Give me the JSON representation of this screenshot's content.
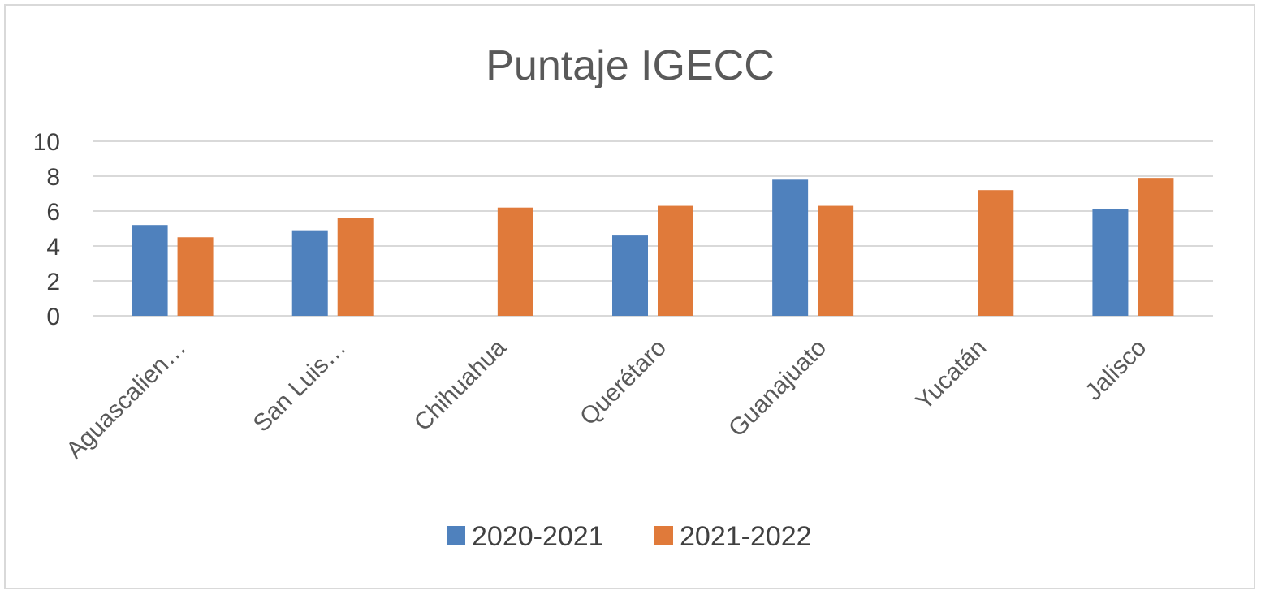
{
  "chart_data": {
    "type": "bar",
    "title": "Puntaje IGECC",
    "xlabel": "",
    "ylabel": "",
    "categories": [
      "Aguascalien…",
      "San Luis…",
      "Chihuahua",
      "Querétaro",
      "Guanajuato",
      "Yucatán",
      "Jalisco"
    ],
    "series": [
      {
        "name": "2020-2021",
        "color": "#4f81bd",
        "values": [
          5.2,
          4.9,
          null,
          4.6,
          7.8,
          null,
          6.1
        ]
      },
      {
        "name": "2021-2022",
        "color": "#e07a3a",
        "values": [
          4.5,
          5.6,
          6.2,
          6.3,
          6.3,
          7.2,
          7.9
        ]
      }
    ],
    "ylim": [
      0,
      10
    ],
    "yticks": [
      0,
      2,
      4,
      6,
      8,
      10
    ],
    "grid": true,
    "legend_position": "bottom"
  }
}
